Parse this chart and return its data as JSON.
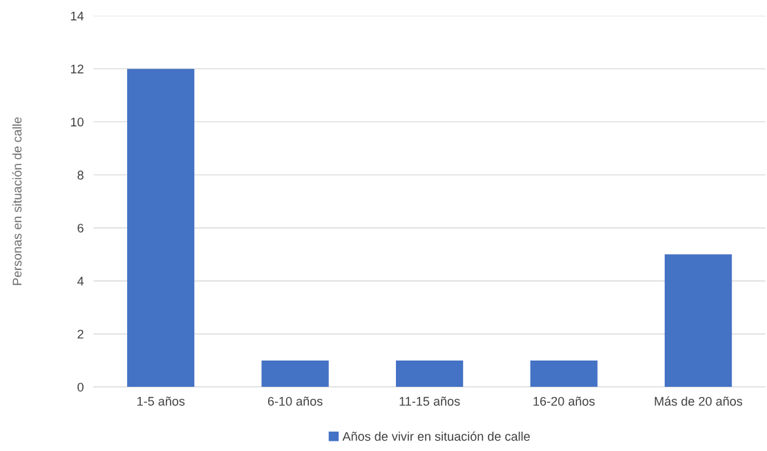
{
  "chart_data": {
    "type": "bar",
    "ylabel": "Personas en situación de calle",
    "categories": [
      "1-5 años",
      "6-10 años",
      "11-15 años",
      "16-20 años",
      "Más de 20 años"
    ],
    "series": [
      {
        "name": "Años de vivir en situación de calle",
        "color": "#4472c4",
        "values": [
          12,
          1,
          1,
          1,
          5
        ]
      }
    ],
    "ylim": [
      0,
      14
    ],
    "yticks": [
      0,
      2,
      4,
      6,
      8,
      10,
      12,
      14
    ],
    "grid": "y",
    "legend": "bottom"
  }
}
